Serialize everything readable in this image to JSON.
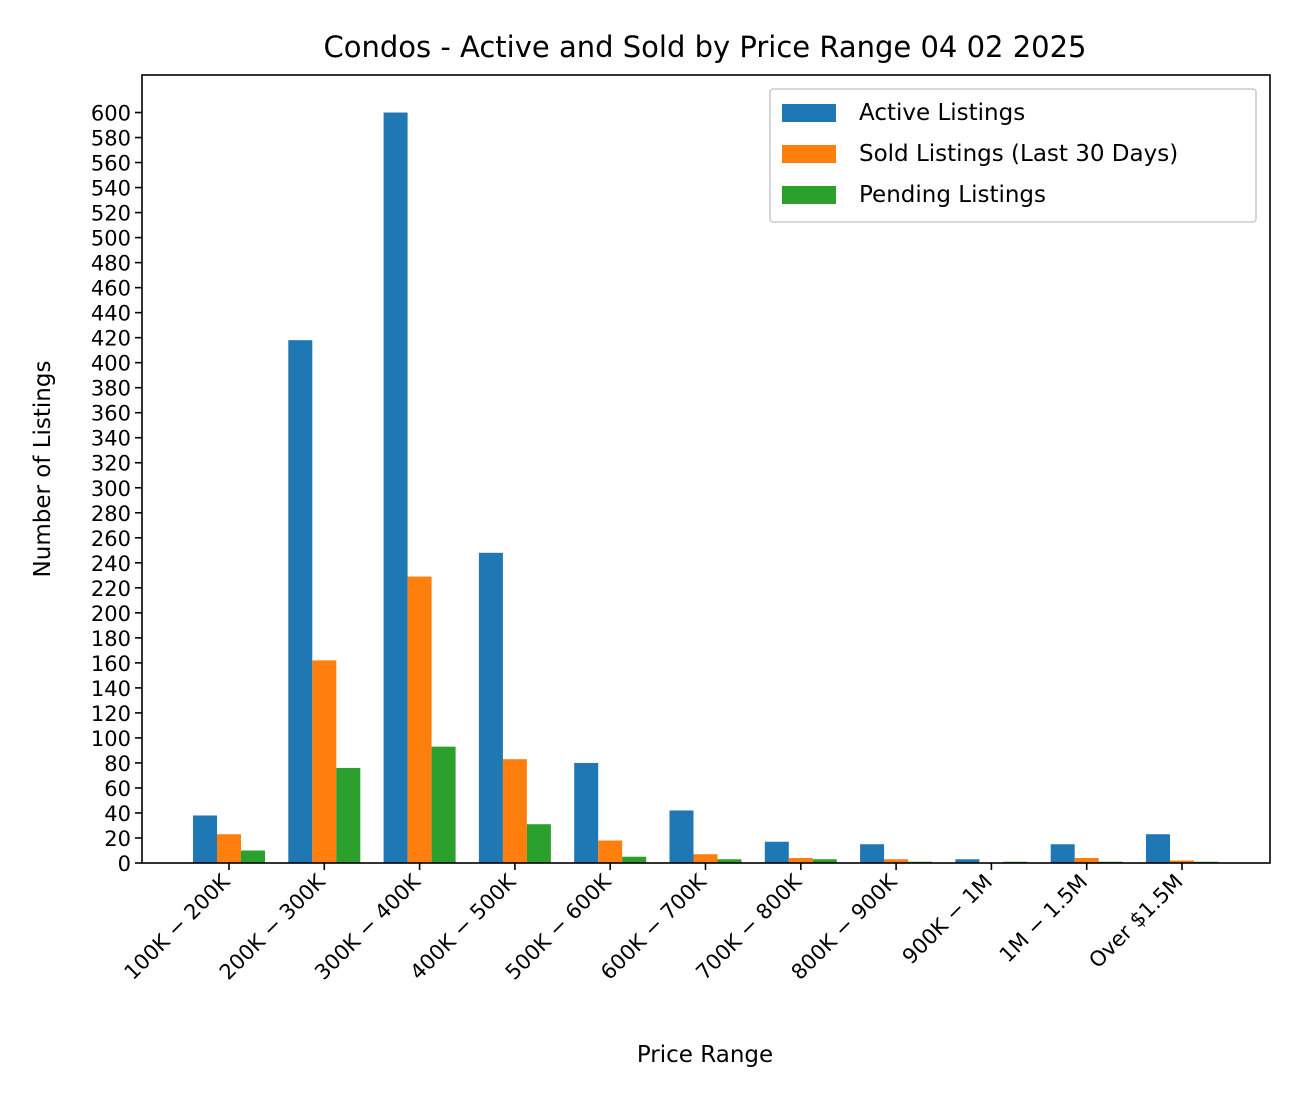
{
  "chart_data": {
    "type": "bar",
    "title": "Condos - Active and Sold by Price Range 04 02 2025",
    "xlabel": "Price Range",
    "ylabel": "Number of Listings",
    "ylim": [
      0,
      630
    ],
    "yticks": [
      0,
      20,
      40,
      60,
      80,
      100,
      120,
      140,
      160,
      180,
      200,
      220,
      240,
      260,
      280,
      300,
      320,
      340,
      360,
      380,
      400,
      420,
      440,
      460,
      480,
      500,
      520,
      540,
      560,
      580,
      600
    ],
    "grid": false,
    "legend_position": "top-right",
    "categories": [
      "100K − 200K",
      "200K − 300K",
      "300K − 400K",
      "400K − 500K",
      "500K − 600K",
      "600K − 700K",
      "700K − 800K",
      "800K − 900K",
      "900K − 1M",
      "1M − 1.5M",
      "Over $1.5M"
    ],
    "series": [
      {
        "name": "Active Listings",
        "color": "#1f77b4",
        "values": [
          38,
          418,
          600,
          248,
          80,
          42,
          17,
          15,
          3,
          15,
          23
        ]
      },
      {
        "name": "Sold Listings (Last 30 Days)",
        "color": "#ff7f0e",
        "values": [
          23,
          162,
          229,
          83,
          18,
          7,
          4,
          3,
          0,
          4,
          2
        ]
      },
      {
        "name": "Pending Listings",
        "color": "#2ca02c",
        "values": [
          10,
          76,
          93,
          31,
          5,
          3,
          3,
          1,
          1,
          1,
          1
        ]
      }
    ]
  }
}
